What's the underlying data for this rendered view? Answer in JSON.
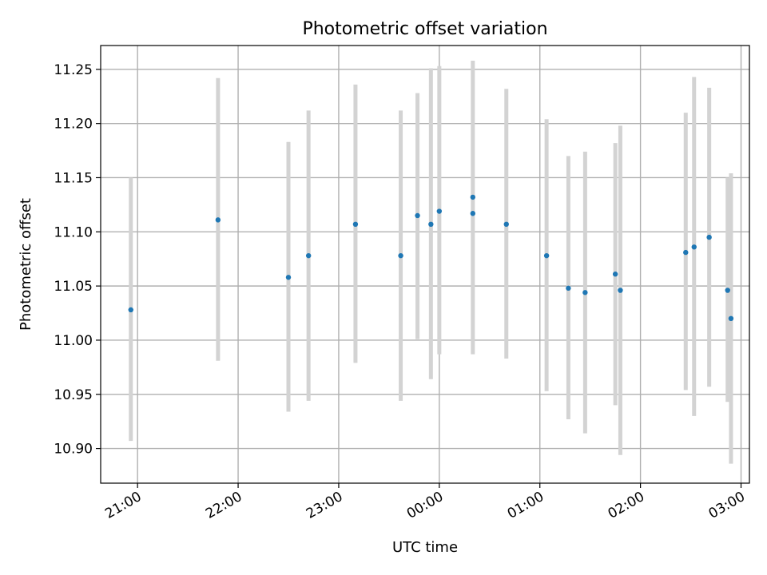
{
  "chart_data": {
    "type": "scatter",
    "title": "Photometric offset variation",
    "xlabel": "UTC time",
    "ylabel": "Photometric offset",
    "x_unit": "UTC time (HH:MM)",
    "xlim": [
      "20:38",
      "03:05"
    ],
    "ylim": [
      10.868,
      11.272
    ],
    "x_ticks": [
      "21:00",
      "22:00",
      "23:00",
      "00:00",
      "01:00",
      "02:00",
      "03:00"
    ],
    "y_ticks": [
      "10.90",
      "10.95",
      "11.00",
      "11.05",
      "11.10",
      "11.15",
      "11.20",
      "11.25"
    ],
    "grid": true,
    "colors": {
      "point": "#1f77b4",
      "errorbar": "#d3d3d3"
    },
    "points": [
      {
        "x": "20:56",
        "y": 11.028,
        "err_low": 10.907,
        "err_high": 11.15
      },
      {
        "x": "21:48",
        "y": 11.111,
        "err_low": 10.981,
        "err_high": 11.242
      },
      {
        "x": "22:30",
        "y": 11.058,
        "err_low": 10.934,
        "err_high": 11.183
      },
      {
        "x": "22:42",
        "y": 11.078,
        "err_low": 10.944,
        "err_high": 11.212
      },
      {
        "x": "23:10",
        "y": 11.107,
        "err_low": 10.979,
        "err_high": 11.236
      },
      {
        "x": "23:37",
        "y": 11.078,
        "err_low": 10.944,
        "err_high": 11.212
      },
      {
        "x": "23:47",
        "y": 11.115,
        "err_low": 11.001,
        "err_high": 11.228
      },
      {
        "x": "23:55",
        "y": 11.107,
        "err_low": 10.964,
        "err_high": 11.251
      },
      {
        "x": "00:00",
        "y": 11.119,
        "err_low": 10.987,
        "err_high": 11.253
      },
      {
        "x": "00:20",
        "y": 11.132
      },
      {
        "x": "00:20",
        "y": 11.117,
        "err_low": 10.987,
        "err_high": 11.258
      },
      {
        "x": "00:40",
        "y": 11.107,
        "err_low": 10.983,
        "err_high": 11.232
      },
      {
        "x": "01:04",
        "y": 11.078,
        "err_low": 10.953,
        "err_high": 11.204
      },
      {
        "x": "01:17",
        "y": 11.048,
        "err_low": 10.927,
        "err_high": 11.17
      },
      {
        "x": "01:27",
        "y": 11.044,
        "err_low": 10.914,
        "err_high": 11.174
      },
      {
        "x": "01:45",
        "y": 11.061,
        "err_low": 10.94,
        "err_high": 11.182
      },
      {
        "x": "01:48",
        "y": 11.046,
        "err_low": 10.894,
        "err_high": 11.198
      },
      {
        "x": "02:27",
        "y": 11.081,
        "err_low": 10.954,
        "err_high": 11.21
      },
      {
        "x": "02:32",
        "y": 11.086,
        "err_low": 10.93,
        "err_high": 11.243
      },
      {
        "x": "02:41",
        "y": 11.095,
        "err_low": 10.957,
        "err_high": 11.233
      },
      {
        "x": "02:52",
        "y": 11.046,
        "err_low": 10.943,
        "err_high": 11.15
      },
      {
        "x": "02:54",
        "y": 11.02,
        "err_low": 10.886,
        "err_high": 11.154
      }
    ]
  }
}
